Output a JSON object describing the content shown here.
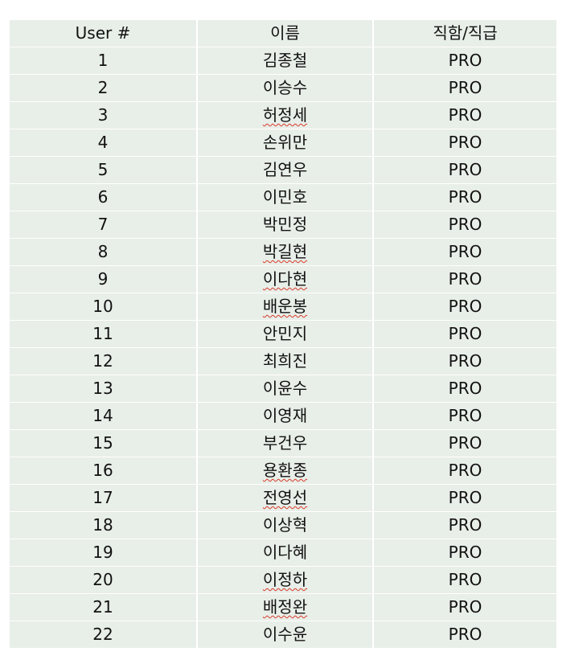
{
  "table": {
    "headers": [
      "User #",
      "이름",
      "직함/직급"
    ],
    "rows": [
      {
        "num": "1",
        "name": "김종철",
        "title": "PRO",
        "flagged": false
      },
      {
        "num": "2",
        "name": "이승수",
        "title": "PRO",
        "flagged": false
      },
      {
        "num": "3",
        "name": "허정세",
        "title": "PRO",
        "flagged": true
      },
      {
        "num": "4",
        "name": "손위만",
        "title": "PRO",
        "flagged": false
      },
      {
        "num": "5",
        "name": "김연우",
        "title": "PRO",
        "flagged": false
      },
      {
        "num": "6",
        "name": "이민호",
        "title": "PRO",
        "flagged": false
      },
      {
        "num": "7",
        "name": "박민정",
        "title": "PRO",
        "flagged": false
      },
      {
        "num": "8",
        "name": "박길현",
        "title": "PRO",
        "flagged": true
      },
      {
        "num": "9",
        "name": "이다현",
        "title": "PRO",
        "flagged": true
      },
      {
        "num": "10",
        "name": "배운봉",
        "title": "PRO",
        "flagged": true
      },
      {
        "num": "11",
        "name": "안민지",
        "title": "PRO",
        "flagged": false
      },
      {
        "num": "12",
        "name": "최희진",
        "title": "PRO",
        "flagged": false
      },
      {
        "num": "13",
        "name": "이윤수",
        "title": "PRO",
        "flagged": false
      },
      {
        "num": "14",
        "name": "이영재",
        "title": "PRO",
        "flagged": false
      },
      {
        "num": "15",
        "name": "부건우",
        "title": "PRO",
        "flagged": false
      },
      {
        "num": "16",
        "name": "용환종",
        "title": "PRO",
        "flagged": true
      },
      {
        "num": "17",
        "name": "전영선",
        "title": "PRO",
        "flagged": true
      },
      {
        "num": "18",
        "name": "이상혁",
        "title": "PRO",
        "flagged": false
      },
      {
        "num": "19",
        "name": "이다혜",
        "title": "PRO",
        "flagged": false
      },
      {
        "num": "20",
        "name": "이정하",
        "title": "PRO",
        "flagged": true
      },
      {
        "num": "21",
        "name": "배정완",
        "title": "PRO",
        "flagged": true
      },
      {
        "num": "22",
        "name": "이수윤",
        "title": "PRO",
        "flagged": false
      }
    ]
  },
  "colors": {
    "cell_background": "#e8eee8",
    "grid_lines": "#ffffff",
    "spellcheck_underline": "#d83a2a"
  }
}
